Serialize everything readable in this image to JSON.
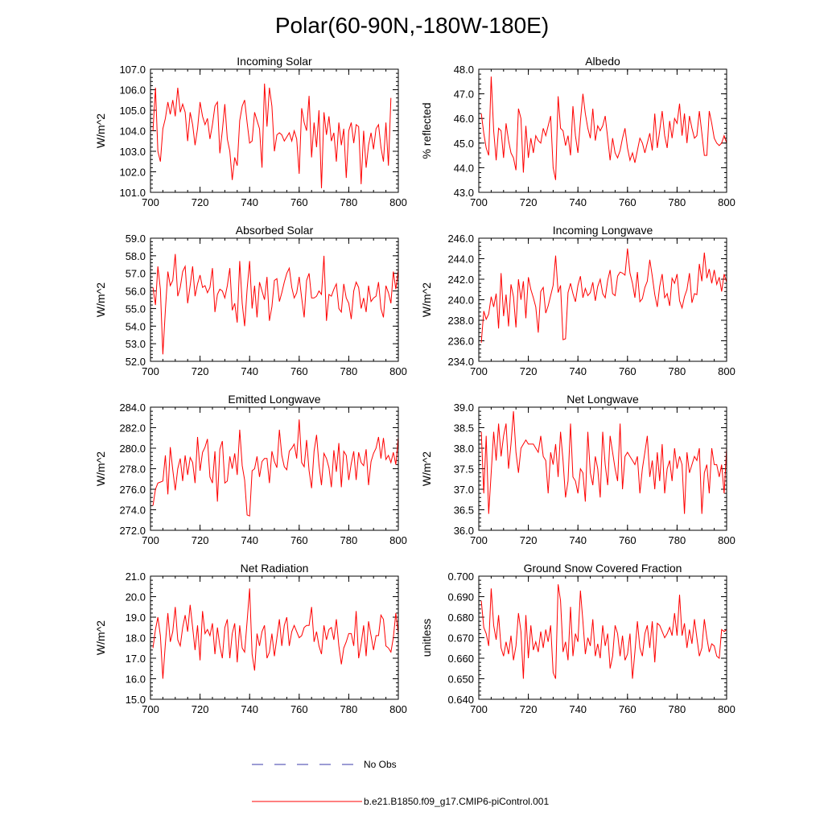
{
  "figure_title": "Polar(60-90N,-180W-180E)",
  "legend": {
    "obs_label": "No Obs",
    "obs_color": "#3a3aa8",
    "model_label": "b.e21.B1850.f09_g17.CMIP6-piControl.001",
    "model_color": "#ff0000"
  },
  "chart_data": [
    {
      "type": "line",
      "title": "Incoming Solar",
      "ylabel": "W/m^2",
      "xlim": [
        700,
        800
      ],
      "xticks": [
        "700",
        "720",
        "740",
        "760",
        "780",
        "800"
      ],
      "ylim": [
        101.0,
        107.0
      ],
      "yticks": [
        "101.0",
        "102.0",
        "103.0",
        "104.0",
        "105.0",
        "106.0",
        "107.0"
      ],
      "x_start": 701,
      "values": [
        104.0,
        106.1,
        103.0,
        102.5,
        104.1,
        104.6,
        105.4,
        104.8,
        105.5,
        104.7,
        106.1,
        104.9,
        105.3,
        104.9,
        103.5,
        104.9,
        104.3,
        103.3,
        104.1,
        105.4,
        104.7,
        104.3,
        104.6,
        103.6,
        104.3,
        105.2,
        105.4,
        102.9,
        104.0,
        105.3,
        103.6,
        103.0,
        101.6,
        102.7,
        102.3,
        104.5,
        105.2,
        105.5,
        104.4,
        103.4,
        103.5,
        104.9,
        104.5,
        104.1,
        102.2,
        106.3,
        104.2,
        106.1,
        105.2,
        103.0,
        103.8,
        103.9,
        103.8,
        103.5,
        103.7,
        103.9,
        103.5,
        104.0,
        103.6,
        101.9,
        105.1,
        104.4,
        104.0,
        105.7,
        102.7,
        104.4,
        103.2,
        105.0,
        101.2,
        104.9,
        103.8,
        104.7,
        103.5,
        103.9,
        102.5,
        104.4,
        103.3,
        104.1,
        101.7,
        104.0,
        104.4,
        103.4,
        104.3,
        104.2,
        101.4,
        104.0,
        102.2,
        103.3,
        103.9,
        103.1,
        104.1,
        104.3,
        103.2,
        102.5,
        104.4,
        102.3,
        105.6
      ]
    },
    {
      "type": "line",
      "title": "Albedo",
      "ylabel": "% reflected",
      "xlim": [
        700,
        800
      ],
      "xticks": [
        "700",
        "720",
        "740",
        "760",
        "780",
        "800"
      ],
      "ylim": [
        43.0,
        48.0
      ],
      "yticks": [
        "43.0",
        "44.0",
        "45.0",
        "46.0",
        "47.0",
        "48.0"
      ],
      "x_start": 701,
      "values": [
        46.2,
        45.4,
        44.8,
        44.5,
        47.7,
        45.5,
        44.3,
        45.6,
        45.5,
        44.4,
        45.8,
        45.1,
        44.6,
        44.4,
        43.9,
        46.4,
        46.0,
        43.8,
        45.7,
        44.4,
        45.2,
        44.6,
        45.3,
        45.1,
        45.0,
        45.6,
        45.3,
        45.7,
        46.1,
        44.0,
        43.5,
        46.9,
        45.6,
        45.5,
        44.9,
        45.3,
        44.5,
        46.5,
        45.3,
        44.6,
        45.9,
        47.0,
        46.2,
        45.6,
        45.2,
        46.4,
        45.1,
        45.7,
        45.5,
        45.7,
        46.1,
        45.2,
        44.3,
        45.2,
        44.6,
        44.4,
        44.7,
        45.2,
        45.6,
        44.8,
        44.3,
        44.6,
        44.2,
        44.7,
        45.2,
        45.0,
        44.6,
        45.0,
        45.4,
        44.7,
        46.2,
        44.8,
        45.5,
        46.3,
        45.3,
        44.8,
        45.9,
        45.2,
        46.0,
        45.8,
        46.6,
        45.3,
        46.2,
        45.0,
        46.1,
        45.6,
        45.2,
        45.3,
        46.3,
        45.4,
        44.5,
        44.5,
        46.3,
        45.8,
        45.2,
        45.0,
        44.9,
        45.0,
        45.3,
        45.0
      ]
    },
    {
      "type": "line",
      "title": "Absorbed Solar",
      "ylabel": "W/m^2",
      "xlim": [
        700,
        800
      ],
      "xticks": [
        "700",
        "720",
        "740",
        "760",
        "780",
        "800"
      ],
      "ylim": [
        52.0,
        59.0
      ],
      "yticks": [
        "52.0",
        "53.0",
        "54.0",
        "55.0",
        "56.0",
        "57.0",
        "58.0",
        "59.0"
      ],
      "x_start": 701,
      "values": [
        56.2,
        55.2,
        57.4,
        56.1,
        52.4,
        54.9,
        57.1,
        56.3,
        56.6,
        58.1,
        55.7,
        56.2,
        57.1,
        57.4,
        55.3,
        56.3,
        57.4,
        55.7,
        56.4,
        56.9,
        56.2,
        56.3,
        55.9,
        56.2,
        57.3,
        54.8,
        55.8,
        56.1,
        56.0,
        55.6,
        56.3,
        57.3,
        54.9,
        55.3,
        54.2,
        57.7,
        55.3,
        54.0,
        56.1,
        57.7,
        55.0,
        56.3,
        54.5,
        56.5,
        56.0,
        55.5,
        56.8,
        54.3,
        55.1,
        56.6,
        56.7,
        55.4,
        55.9,
        56.5,
        57.0,
        57.3,
        56.2,
        55.6,
        55.9,
        56.8,
        55.6,
        54.5,
        56.6,
        57.0,
        55.6,
        55.6,
        55.7,
        56.0,
        55.8,
        58.0,
        54.3,
        55.8,
        55.7,
        56.1,
        56.4,
        55.0,
        54.8,
        56.4,
        55.6,
        55.3,
        54.4,
        56.0,
        56.5,
        56.2,
        55.0,
        55.6,
        54.8,
        56.3,
        55.4,
        55.6,
        55.7,
        56.5,
        55.0,
        54.5,
        56.3,
        55.9,
        55.3,
        57.1,
        56.1,
        57.2
      ]
    },
    {
      "type": "line",
      "title": "Incoming Longwave",
      "ylabel": "W/m^2",
      "xlim": [
        700,
        800
      ],
      "xticks": [
        "700",
        "720",
        "740",
        "760",
        "780",
        "800"
      ],
      "ylim": [
        234.0,
        246.0
      ],
      "yticks": [
        "234.0",
        "236.0",
        "238.0",
        "240.0",
        "242.0",
        "244.0",
        "246.0"
      ],
      "x_start": 701,
      "values": [
        235.8,
        238.9,
        238.1,
        238.6,
        240.3,
        239.3,
        240.6,
        237.2,
        242.6,
        238.4,
        240.5,
        237.4,
        241.5,
        240.3,
        237.3,
        242.0,
        240.0,
        241.8,
        238.2,
        242.2,
        241.0,
        240.2,
        239.3,
        236.8,
        240.8,
        241.2,
        238.7,
        239.4,
        240.4,
        241.4,
        244.3,
        240.7,
        241.4,
        236.1,
        236.2,
        240.7,
        241.6,
        240.6,
        239.8,
        241.4,
        242.3,
        240.2,
        241.1,
        240.4,
        240.7,
        241.7,
        239.9,
        241.3,
        242.0,
        240.6,
        240.2,
        241.9,
        242.9,
        240.6,
        240.4,
        242.3,
        242.7,
        242.6,
        242.4,
        245.0,
        242.6,
        241.6,
        240.2,
        242.7,
        239.8,
        240.1,
        241.2,
        241.8,
        243.9,
        242.3,
        240.5,
        239.3,
        241.3,
        242.5,
        240.2,
        240.6,
        239.4,
        242.1,
        241.6,
        242.5,
        239.9,
        239.2,
        240.3,
        241.0,
        242.6,
        239.7,
        240.6,
        240.5,
        243.5,
        241.8,
        244.6,
        242.1,
        243.0,
        241.6,
        242.9,
        241.5,
        242.2,
        240.8,
        242.5,
        241.7
      ]
    },
    {
      "type": "line",
      "title": "Emitted Longwave",
      "ylabel": "W/m^2",
      "xlim": [
        700,
        800
      ],
      "xticks": [
        "700",
        "720",
        "740",
        "760",
        "780",
        "800"
      ],
      "ylim": [
        272.0,
        284.0
      ],
      "yticks": [
        "272.0",
        "274.0",
        "276.0",
        "278.0",
        "280.0",
        "282.0",
        "284.0"
      ],
      "x_start": 701,
      "values": [
        274.4,
        276.0,
        276.6,
        276.7,
        276.8,
        279.3,
        275.5,
        280.1,
        277.9,
        275.9,
        278.0,
        279.0,
        276.8,
        279.3,
        277.4,
        279.1,
        278.6,
        276.6,
        281.1,
        277.8,
        279.6,
        280.1,
        280.9,
        277.2,
        276.6,
        279.7,
        274.8,
        279.9,
        280.7,
        276.6,
        276.8,
        279.2,
        278.0,
        279.5,
        277.4,
        281.8,
        278.3,
        276.9,
        273.5,
        273.4,
        277.8,
        278.0,
        279.2,
        277.2,
        278.7,
        279.0,
        279.0,
        276.6,
        279.7,
        278.7,
        278.1,
        281.8,
        279.3,
        278.2,
        277.9,
        279.7,
        280.0,
        280.4,
        279.0,
        282.8,
        278.6,
        278.2,
        280.8,
        277.8,
        276.1,
        279.7,
        281.3,
        278.4,
        276.4,
        279.5,
        279.0,
        278.1,
        276.2,
        279.8,
        277.7,
        280.5,
        276.2,
        279.7,
        279.3,
        276.9,
        278.5,
        279.7,
        276.9,
        279.6,
        278.6,
        278.3,
        279.9,
        276.4,
        278.7,
        279.5,
        280.0,
        281.1,
        279.0,
        281.0,
        278.9,
        279.3,
        278.6,
        279.6,
        278.4,
        281.1
      ]
    },
    {
      "type": "line",
      "title": "Net Longwave",
      "ylabel": "W/m^2",
      "xlim": [
        700,
        800
      ],
      "xticks": [
        "700",
        "720",
        "740",
        "760",
        "780",
        "800"
      ],
      "ylim": [
        36.0,
        39.0
      ],
      "yticks": [
        "36.0",
        "36.5",
        "37.0",
        "37.5",
        "38.0",
        "38.5",
        "39.0"
      ],
      "x_start": 701,
      "values": [
        38.4,
        36.9,
        38.3,
        36.4,
        37.4,
        38.4,
        37.7,
        38.6,
        37.8,
        38.3,
        38.6,
        37.5,
        38.1,
        38.9,
        37.9,
        37.4,
        38.0,
        38.1,
        38.2,
        38.1,
        38.1,
        38.1,
        38.0,
        37.9,
        38.3,
        37.8,
        37.7,
        36.9,
        37.9,
        37.6,
        38.1,
        37.3,
        38.4,
        37.7,
        36.8,
        37.2,
        38.6,
        37.3,
        37.2,
        36.9,
        37.5,
        37.4,
        36.7,
        38.4,
        37.4,
        37.1,
        37.8,
        37.5,
        36.8,
        38.4,
        37.6,
        37.1,
        38.3,
        37.9,
        37.5,
        37.2,
        38.6,
        37.0,
        37.8,
        37.9,
        37.8,
        37.7,
        37.6,
        37.8,
        36.9,
        37.5,
        37.9,
        38.3,
        37.3,
        37.7,
        37.0,
        37.9,
        37.2,
        38.1,
        36.9,
        37.5,
        37.7,
        37.2,
        38.0,
        37.5,
        37.8,
        37.6,
        36.4,
        37.9,
        37.4,
        37.6,
        37.8,
        37.7,
        38.0,
        36.4,
        37.4,
        37.6,
        36.9,
        38.0,
        37.6,
        37.6,
        37.3,
        37.6,
        36.9,
        38.0
      ]
    },
    {
      "type": "line",
      "title": "Net Radiation",
      "ylabel": "W/m^2",
      "xlim": [
        700,
        800
      ],
      "xticks": [
        "700",
        "720",
        "740",
        "760",
        "780",
        "800"
      ],
      "ylim": [
        15.0,
        21.0
      ],
      "yticks": [
        "15.0",
        "16.0",
        "17.0",
        "18.0",
        "19.0",
        "20.0",
        "21.0"
      ],
      "x_start": 701,
      "values": [
        17.5,
        18.4,
        19.0,
        18.1,
        16.0,
        17.7,
        19.2,
        17.8,
        18.3,
        19.5,
        17.9,
        17.6,
        18.5,
        19.1,
        18.3,
        19.6,
        18.5,
        17.4,
        18.6,
        16.9,
        19.3,
        18.2,
        18.4,
        18.1,
        18.7,
        17.2,
        18.5,
        17.6,
        17.0,
        18.5,
        18.9,
        17.0,
        18.2,
        18.7,
        16.8,
        18.6,
        17.5,
        17.3,
        18.8,
        20.4,
        17.2,
        16.4,
        18.2,
        17.6,
        18.3,
        18.6,
        17.0,
        17.3,
        18.2,
        17.1,
        18.0,
        18.9,
        17.6,
        18.6,
        19.0,
        17.6,
        18.3,
        18.6,
        18.3,
        18.0,
        18.1,
        18.5,
        18.6,
        18.6,
        19.5,
        17.8,
        18.3,
        17.6,
        17.2,
        18.6,
        17.9,
        18.4,
        18.5,
        17.9,
        18.9,
        17.6,
        16.7,
        17.5,
        17.8,
        18.2,
        18.2,
        17.6,
        19.3,
        17.0,
        17.7,
        18.6,
        17.1,
        18.8,
        18.1,
        17.4,
        18.1,
        18.1,
        19.1,
        18.9,
        17.6,
        17.5,
        17.3,
        18.0,
        19.2,
        18.2
      ]
    },
    {
      "type": "line",
      "title": "Ground Snow Covered Fraction",
      "ylabel": "unitless",
      "xlim": [
        700,
        800
      ],
      "xticks": [
        "700",
        "720",
        "740",
        "760",
        "780",
        "800"
      ],
      "ylim": [
        0.64,
        0.7
      ],
      "yticks": [
        "0.640",
        "0.650",
        "0.660",
        "0.670",
        "0.680",
        "0.690",
        "0.700"
      ],
      "x_start": 701,
      "values": [
        0.688,
        0.675,
        0.672,
        0.666,
        0.694,
        0.676,
        0.669,
        0.681,
        0.665,
        0.661,
        0.668,
        0.662,
        0.671,
        0.659,
        0.666,
        0.682,
        0.673,
        0.65,
        0.681,
        0.66,
        0.676,
        0.664,
        0.668,
        0.663,
        0.673,
        0.665,
        0.674,
        0.668,
        0.676,
        0.653,
        0.65,
        0.696,
        0.688,
        0.663,
        0.668,
        0.659,
        0.685,
        0.661,
        0.672,
        0.668,
        0.693,
        0.678,
        0.662,
        0.67,
        0.666,
        0.679,
        0.661,
        0.667,
        0.66,
        0.676,
        0.666,
        0.672,
        0.655,
        0.661,
        0.676,
        0.672,
        0.661,
        0.671,
        0.659,
        0.662,
        0.672,
        0.65,
        0.663,
        0.678,
        0.665,
        0.661,
        0.672,
        0.676,
        0.665,
        0.678,
        0.658,
        0.677,
        0.676,
        0.673,
        0.67,
        0.672,
        0.675,
        0.671,
        0.682,
        0.671,
        0.691,
        0.671,
        0.677,
        0.665,
        0.674,
        0.667,
        0.679,
        0.67,
        0.661,
        0.665,
        0.679,
        0.67,
        0.663,
        0.667,
        0.666,
        0.661,
        0.66,
        0.674,
        0.673,
        0.674
      ]
    }
  ]
}
